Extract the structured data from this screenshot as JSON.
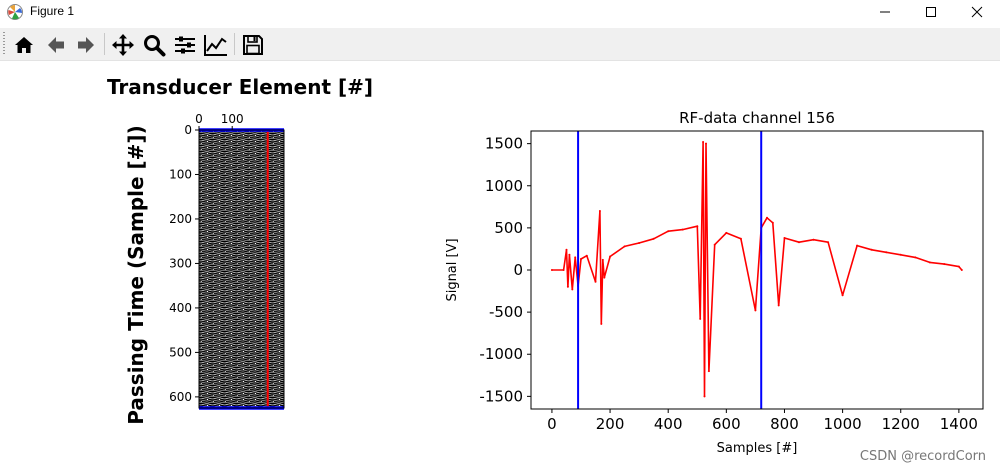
{
  "window": {
    "title": "Figure 1",
    "icon": "matplotlib-icon",
    "controls": [
      "minimize-icon",
      "maximize-icon",
      "close-icon"
    ]
  },
  "toolbar": {
    "buttons": [
      {
        "name": "home-icon",
        "tooltip": "Home"
      },
      {
        "name": "back-arrow-icon",
        "tooltip": "Back"
      },
      {
        "name": "forward-arrow-icon",
        "tooltip": "Forward"
      },
      {
        "name": "pan-icon",
        "tooltip": "Pan"
      },
      {
        "name": "zoom-icon",
        "tooltip": "Zoom"
      },
      {
        "name": "configure-subplots-icon",
        "tooltip": "Subplots"
      },
      {
        "name": "edit-axis-icon",
        "tooltip": "Customize"
      },
      {
        "name": "save-icon",
        "tooltip": "Save"
      }
    ]
  },
  "left_panel": {
    "title": "Transducer Element [#]",
    "ylabel": "Passing Time (Sample [#])"
  },
  "chart_data": [
    {
      "type": "heatmap",
      "title": "Transducer Element [#]",
      "xlabel": "",
      "ylabel": "Passing Time (Sample [#])",
      "x_ticks": [
        0,
        100
      ],
      "y_ticks": [
        0,
        100,
        200,
        300,
        400,
        500,
        600
      ],
      "xlim": [
        0,
        256
      ],
      "ylim": [
        625,
        0
      ],
      "x_axis_position": "top",
      "colormap": "gray",
      "overlay_lines": [
        {
          "orientation": "vertical",
          "x": 207,
          "color": "#ff0000"
        },
        {
          "orientation": "horizontal",
          "y": 0,
          "color": "#0000ff"
        },
        {
          "orientation": "horizontal",
          "y": 625,
          "color": "#0000ff"
        }
      ]
    },
    {
      "type": "line",
      "title": "RF-data channel 156",
      "xlabel": "Samples [#]",
      "ylabel": "Signal [V]",
      "xlim": [
        -72,
        1483
      ],
      "ylim": [
        -1650,
        1650
      ],
      "x_ticks": [
        0,
        200,
        400,
        600,
        800,
        1000,
        1200,
        1400
      ],
      "y_ticks": [
        1500,
        1000,
        500,
        0,
        -500,
        -1000,
        -1500
      ],
      "series": [
        {
          "color": "#ff0000",
          "x": [
            0,
            40,
            50,
            55,
            60,
            70,
            80,
            90,
            100,
            120,
            150,
            165,
            170,
            175,
            180,
            200,
            250,
            300,
            350,
            400,
            450,
            500,
            510,
            520,
            525,
            530,
            540,
            560,
            600,
            650,
            700,
            720,
            740,
            760,
            780,
            800,
            850,
            900,
            950,
            1000,
            1050,
            1100,
            1150,
            1200,
            1250,
            1300,
            1350,
            1400,
            1410
          ],
          "y": [
            0,
            0,
            240,
            -200,
            180,
            -230,
            150,
            -190,
            130,
            170,
            -140,
            700,
            -640,
            120,
            -90,
            160,
            280,
            320,
            370,
            460,
            480,
            520,
            -580,
            1520,
            -1500,
            1500,
            -1200,
            300,
            440,
            370,
            -480,
            500,
            620,
            560,
            -420,
            380,
            330,
            360,
            330,
            -300,
            290,
            240,
            210,
            180,
            150,
            90,
            70,
            40,
            0
          ]
        }
      ],
      "vlines": [
        {
          "x": 90,
          "color": "#0000ff"
        },
        {
          "x": 720,
          "color": "#0000ff"
        }
      ]
    }
  ],
  "watermark": "CSDN @recordCorn"
}
